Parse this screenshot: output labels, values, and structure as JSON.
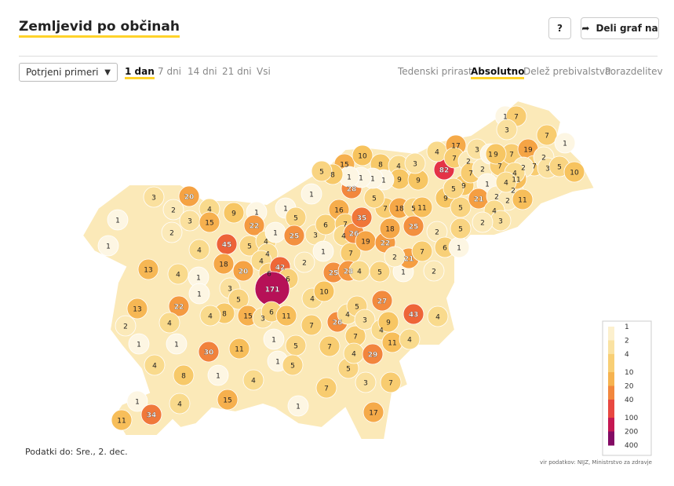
{
  "header": {
    "title": "Zemljevid po občinah",
    "help": "?",
    "share": "Deli graf na"
  },
  "controls": {
    "dropdown": "Potrjeni primeri",
    "periods": [
      "1 dan",
      "7 dni",
      "14 dni",
      "21 dni",
      "Vsi"
    ],
    "active_period": 0,
    "views": [
      "Tedenski prirast",
      "Absolutno",
      "Delež prebivalstva",
      "Porazdelitev"
    ],
    "active_view": 1
  },
  "map": {
    "type": "choropleth",
    "log_scale": true,
    "values": [
      3,
      20,
      1,
      2,
      3,
      4,
      15,
      9,
      1,
      1,
      1,
      2,
      1,
      4,
      45,
      5,
      22,
      4,
      4,
      1,
      5,
      25,
      13,
      4,
      1,
      18,
      20,
      4,
      6,
      42,
      6,
      2,
      171,
      4,
      13,
      22,
      1,
      3,
      5,
      8,
      4,
      4,
      2,
      1,
      1,
      15,
      3,
      6,
      11,
      1,
      5,
      7,
      10,
      30,
      11,
      4,
      8,
      1,
      1,
      5,
      7,
      26,
      4,
      5,
      7,
      5,
      4,
      3,
      29,
      4,
      9,
      11,
      27,
      43,
      4,
      4,
      3,
      7,
      4,
      15,
      4,
      1,
      34,
      11,
      7,
      1,
      17,
      3,
      1,
      25,
      6,
      16,
      7,
      4,
      7,
      26,
      19,
      35,
      23,
      4,
      5,
      1,
      22,
      18,
      7,
      5,
      18,
      5,
      11,
      25,
      21,
      2,
      7,
      2,
      2,
      6,
      1,
      5,
      9,
      5,
      28,
      15,
      10,
      8,
      4,
      9,
      9,
      3,
      1,
      1,
      1,
      1,
      8,
      5,
      82,
      9,
      5,
      4,
      17,
      7,
      2,
      7,
      2,
      3,
      1,
      7,
      1,
      21,
      2,
      2,
      2,
      4,
      3,
      2,
      11,
      7,
      9,
      19,
      7,
      2,
      2,
      3,
      5,
      10,
      11,
      7,
      1,
      1,
      7,
      3,
      4,
      4
    ],
    "legend": {
      "ticks": [
        1,
        2,
        4,
        10,
        20,
        40,
        100,
        200,
        400
      ],
      "colors": [
        "#fdf6e3",
        "#fbe9b8",
        "#f9da8c",
        "#f7c35e",
        "#f5a243",
        "#ef6b37",
        "#e1244a",
        "#a90c5b",
        "#5d0a6c"
      ]
    }
  },
  "footer": {
    "date": "Podatki do: Sre., 2. dec.",
    "source": "vir podatkov: NIJZ, Ministrstvo za zdravje"
  }
}
